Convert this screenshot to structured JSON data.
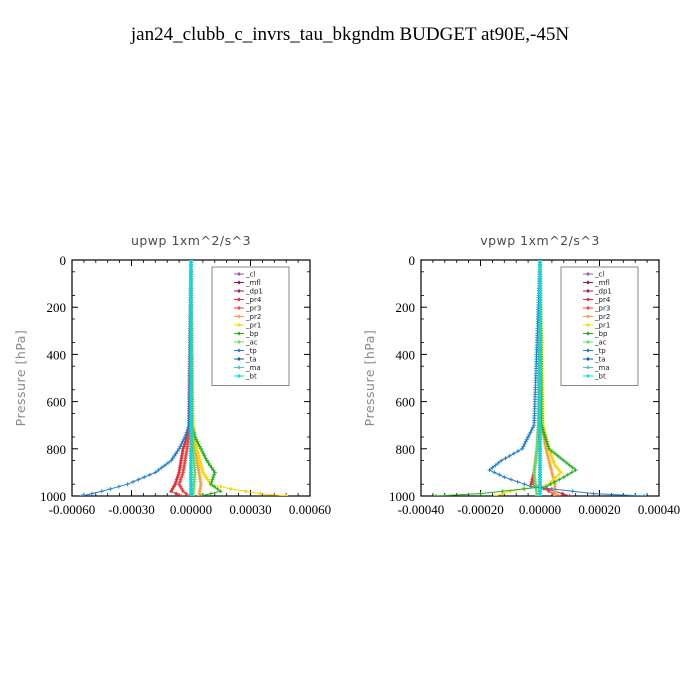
{
  "figure": {
    "title": "jan24_clubb_c_invrs_tau_bkgndm  BUDGET at90E,-45N"
  },
  "chart_data": [
    {
      "type": "line",
      "title": "upwp   1xm^2/s^3",
      "xlabel": "",
      "ylabel": "Pressure [hPa]",
      "xlim": [
        -0.0006,
        0.0006
      ],
      "ylim": [
        1000,
        0
      ],
      "xticks": [
        -0.0006,
        -0.0003,
        0.0,
        0.0003,
        0.0006
      ],
      "xtick_labels": [
        "-0.00060",
        "-0.00030",
        "0.00000",
        "0.00030",
        "0.00060"
      ],
      "yticks": [
        0,
        200,
        400,
        600,
        800,
        1000
      ],
      "ytick_labels": [
        "0",
        "200",
        "400",
        "600",
        "800",
        "1000"
      ],
      "grid": false,
      "legend_position": "top-right",
      "series": [
        {
          "name": "_cl",
          "color": "#9b59b6",
          "marker": "diamond",
          "p": [
            0,
            700,
            800,
            900,
            960,
            1000
          ],
          "x": [
            0,
            0,
            0,
            0,
            0,
            0
          ]
        },
        {
          "name": "_mfl",
          "color": "#8e1a5e",
          "marker": "plus",
          "p": [
            0,
            700,
            800,
            900,
            960,
            1000
          ],
          "x": [
            0,
            0,
            0,
            0,
            0,
            0
          ]
        },
        {
          "name": "_dp1",
          "color": "#a0205a",
          "marker": "diamond",
          "p": [
            0,
            700,
            800,
            900,
            960,
            1000
          ],
          "x": [
            0,
            0,
            0,
            0,
            0,
            0
          ]
        },
        {
          "name": "_pr4",
          "color": "#e0303a",
          "marker": "diamond",
          "p": [
            0,
            700,
            750,
            800,
            850,
            900,
            950,
            980,
            1000
          ],
          "x": [
            0,
            -1e-05,
            -2e-05,
            -4e-05,
            -5e-05,
            -6e-05,
            -8e-05,
            -0.0001,
            -5e-05
          ]
        },
        {
          "name": "_pr3",
          "color": "#ff4040",
          "marker": "diamond",
          "p": [
            0,
            700,
            800,
            900,
            950,
            980,
            1000
          ],
          "x": [
            0,
            -5e-06,
            -2e-05,
            -4e-05,
            -6e-05,
            -4e-05,
            -1e-05
          ]
        },
        {
          "name": "_pr2",
          "color": "#ffa040",
          "marker": "diamond",
          "p": [
            0,
            700,
            800,
            900,
            950,
            1000
          ],
          "x": [
            0,
            5e-06,
            2e-05,
            4e-05,
            5e-05,
            4e-05
          ]
        },
        {
          "name": "_pr1",
          "color": "#ffd700",
          "marker": "diamond",
          "p": [
            0,
            700,
            800,
            900,
            950,
            970,
            990,
            1000
          ],
          "x": [
            0,
            1e-05,
            3e-05,
            6e-05,
            0.0001,
            0.0002,
            0.00035,
            0.00048
          ]
        },
        {
          "name": "_bp",
          "color": "#20b020",
          "marker": "plus",
          "p": [
            0,
            700,
            750,
            800,
            850,
            900,
            950,
            980,
            1000
          ],
          "x": [
            0,
            5e-06,
            2e-05,
            5e-05,
            8e-05,
            0.00012,
            0.0001,
            0.00015,
            5e-05
          ]
        },
        {
          "name": "_ac",
          "color": "#60e060",
          "marker": "diamond",
          "p": [
            0,
            700,
            800,
            900,
            1000
          ],
          "x": [
            0,
            5e-06,
            1e-05,
            2e-05,
            1e-05
          ]
        },
        {
          "name": "_tp",
          "color": "#2080d0",
          "marker": "plus",
          "p": [
            0,
            700,
            750,
            800,
            850,
            900,
            950,
            980,
            1000
          ],
          "x": [
            0,
            -1e-05,
            -3e-05,
            -6e-05,
            -0.0001,
            -0.00018,
            -0.00032,
            -0.00045,
            -0.00055
          ]
        },
        {
          "name": "_ta",
          "color": "#1060b0",
          "marker": "plus",
          "p": [
            0,
            700,
            800,
            900,
            1000
          ],
          "x": [
            0,
            0,
            0,
            0,
            0
          ]
        },
        {
          "name": "_ma",
          "color": "#50c0d0",
          "marker": "dash",
          "p": [
            0,
            700,
            800,
            900,
            1000
          ],
          "x": [
            0,
            0,
            0,
            0,
            0
          ]
        },
        {
          "name": "_bt",
          "color": "#00e0e0",
          "marker": "diamond",
          "p": [
            0,
            700,
            800,
            900,
            1000
          ],
          "x": [
            0,
            0,
            0,
            0,
            0
          ]
        }
      ]
    },
    {
      "type": "line",
      "title": "vpwp   1xm^2/s^3",
      "xlabel": "",
      "ylabel": "Pressure [hPa]",
      "xlim": [
        -0.0004,
        0.0004
      ],
      "ylim": [
        1000,
        0
      ],
      "xticks": [
        -0.0004,
        -0.0002,
        0.0,
        0.0002,
        0.0004
      ],
      "xtick_labels": [
        "-0.00040",
        "-0.00020",
        "0.00000",
        "0.00020",
        "0.00040"
      ],
      "yticks": [
        0,
        200,
        400,
        600,
        800,
        1000
      ],
      "ytick_labels": [
        "0",
        "200",
        "400",
        "600",
        "800",
        "1000"
      ],
      "grid": false,
      "legend_position": "top-right",
      "series": [
        {
          "name": "_cl",
          "color": "#9b59b6",
          "marker": "diamond",
          "p": [
            0,
            700,
            800,
            900,
            960,
            1000
          ],
          "x": [
            0,
            0,
            0,
            0,
            0,
            0
          ]
        },
        {
          "name": "_mfl",
          "color": "#8e1a5e",
          "marker": "plus",
          "p": [
            0,
            700,
            800,
            900,
            960,
            1000
          ],
          "x": [
            0,
            0,
            0,
            0,
            0,
            0
          ]
        },
        {
          "name": "_dp1",
          "color": "#a0205a",
          "marker": "diamond",
          "p": [
            0,
            700,
            800,
            900,
            960,
            1000
          ],
          "x": [
            0,
            0,
            0,
            0,
            0,
            0
          ]
        },
        {
          "name": "_pr4",
          "color": "#e0303a",
          "marker": "diamond",
          "p": [
            0,
            700,
            800,
            900,
            950,
            980,
            1000
          ],
          "x": [
            0,
            -5e-06,
            -1e-05,
            -2e-05,
            -3e-05,
            5e-05,
            0.0001
          ]
        },
        {
          "name": "_pr3",
          "color": "#ff4040",
          "marker": "diamond",
          "p": [
            0,
            700,
            800,
            900,
            950,
            980,
            1000
          ],
          "x": [
            0,
            -5e-06,
            -1e-05,
            -2e-05,
            -2e-05,
            3e-05,
            6e-05
          ]
        },
        {
          "name": "_pr2",
          "color": "#ffa040",
          "marker": "diamond",
          "p": [
            0,
            700,
            800,
            900,
            950,
            1000
          ],
          "x": [
            0,
            5e-06,
            2e-05,
            4e-05,
            5e-05,
            5e-05
          ]
        },
        {
          "name": "_pr1",
          "color": "#ffd700",
          "marker": "diamond",
          "p": [
            0,
            700,
            800,
            870,
            900,
            950,
            980,
            1000
          ],
          "x": [
            0,
            1e-05,
            3e-05,
            5e-05,
            7e-05,
            3e-05,
            -0.0001,
            -0.00015
          ]
        },
        {
          "name": "_bp",
          "color": "#20b020",
          "marker": "plus",
          "p": [
            0,
            700,
            800,
            850,
            890,
            920,
            960,
            990,
            1000
          ],
          "x": [
            0,
            5e-06,
            3e-05,
            8e-05,
            0.00012,
            8e-05,
            2e-05,
            -0.0002,
            -0.00035
          ]
        },
        {
          "name": "_ac",
          "color": "#60e060",
          "marker": "diamond",
          "p": [
            0,
            700,
            800,
            900,
            1000
          ],
          "x": [
            0,
            -5e-06,
            -1e-05,
            -2e-05,
            -1e-05
          ]
        },
        {
          "name": "_tp",
          "color": "#2080d0",
          "marker": "plus",
          "p": [
            0,
            700,
            800,
            850,
            890,
            920,
            960,
            990,
            1000
          ],
          "x": [
            0,
            -2e-05,
            -6e-05,
            -0.00013,
            -0.00017,
            -0.00012,
            -3e-05,
            0.00018,
            0.00035
          ]
        },
        {
          "name": "_ta",
          "color": "#1060b0",
          "marker": "plus",
          "p": [
            0,
            700,
            800,
            900,
            1000
          ],
          "x": [
            0,
            0,
            0,
            0,
            0
          ]
        },
        {
          "name": "_ma",
          "color": "#50c0d0",
          "marker": "dash",
          "p": [
            0,
            700,
            800,
            900,
            1000
          ],
          "x": [
            0,
            0,
            0,
            0,
            0
          ]
        },
        {
          "name": "_bt",
          "color": "#00e0e0",
          "marker": "diamond",
          "p": [
            0,
            700,
            800,
            900,
            1000
          ],
          "x": [
            0,
            0,
            0,
            0,
            0
          ]
        }
      ]
    }
  ]
}
